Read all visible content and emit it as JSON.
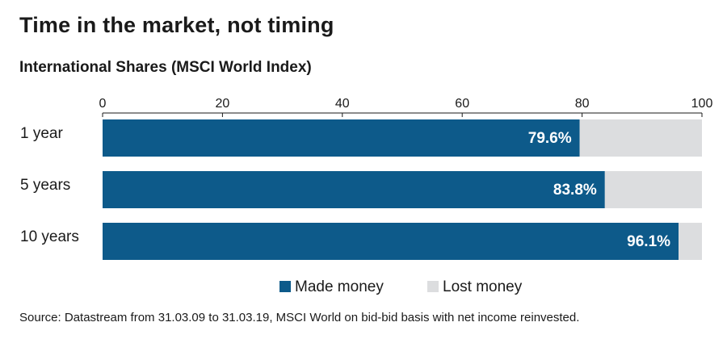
{
  "title": "Time in the market, not timing",
  "subtitle": "International Shares (MSCI World Index)",
  "source": "Source: Datastream from 31.03.09 to 31.03.19, MSCI World on bid-bid basis with net income reinvested.",
  "chart_data": {
    "type": "bar",
    "orientation": "horizontal",
    "stacked": true,
    "categories": [
      "1 year",
      "5 years",
      "10 years"
    ],
    "series": [
      {
        "name": "Made money",
        "values": [
          79.6,
          83.8,
          96.1
        ],
        "color": "#0d5a8a",
        "labels": [
          "79.6%",
          "83.8%",
          "96.1%"
        ]
      },
      {
        "name": "Lost money",
        "values": [
          20.4,
          16.2,
          3.9
        ],
        "color": "#dcdddf"
      }
    ],
    "xlim": [
      0,
      100
    ],
    "xticks": [
      "0",
      "20",
      "40",
      "60",
      "80",
      "100"
    ],
    "axis_position": "top",
    "grid": false,
    "legend_position": "bottom-center"
  }
}
